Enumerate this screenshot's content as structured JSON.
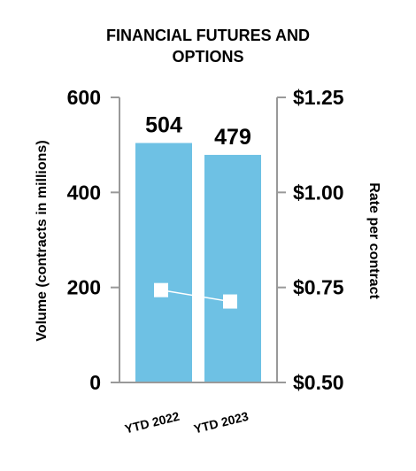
{
  "chart_data": {
    "type": "bar",
    "title": "FINANCIAL FUTURES AND OPTIONS",
    "title_lines": [
      "FINANCIAL FUTURES AND",
      "OPTIONS"
    ],
    "categories": [
      "YTD 2022",
      "YTD 2023"
    ],
    "series": [
      {
        "values": [
          504,
          479
        ],
        "axis": "left",
        "kind": "bar",
        "color": "#6EC1E4"
      },
      {
        "values": [
          0.743,
          0.713
        ],
        "axis": "right",
        "kind": "line",
        "color": "#ffffff"
      }
    ],
    "data_labels": [
      "504",
      "479"
    ],
    "ylabel": "Volume (contracts in millions)",
    "y2label": "Rate per contract",
    "ylim": [
      0,
      600
    ],
    "y2lim": [
      0.5,
      1.25
    ],
    "yticks": [
      0,
      200,
      400,
      600
    ],
    "yticklabels": [
      "0",
      "200",
      "400",
      "600"
    ],
    "y2ticks": [
      0.5,
      0.75,
      1.0,
      1.25
    ],
    "y2ticklabels": [
      "$0.50",
      "$0.75",
      "$1.00",
      "$1.25"
    ],
    "grid": false,
    "legend": "none"
  },
  "colors": {
    "axis": "#999999",
    "bar": "#6EC1E4",
    "marker": "#ffffff",
    "text": "#000000"
  }
}
